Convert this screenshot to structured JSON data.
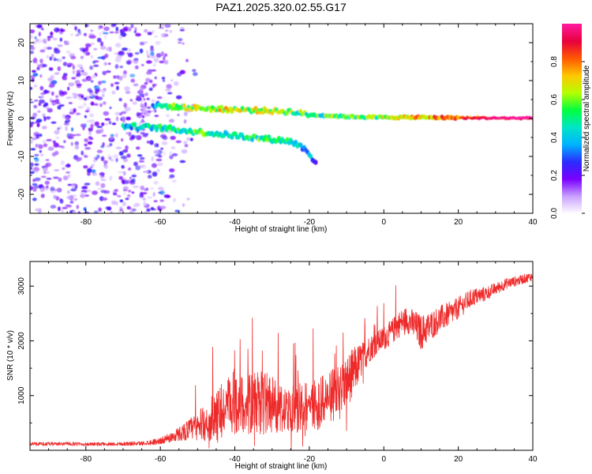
{
  "title": "PAZ1.2025.320.02.55.G17",
  "chart_data": [
    {
      "type": "heatmap",
      "name": "spectrogram",
      "xlabel": "Height of straight line (km)",
      "ylabel": "Frequency (Hz)",
      "xlim": [
        -95,
        40
      ],
      "ylim": [
        -25,
        25
      ],
      "xticks": [
        -80,
        -60,
        -40,
        -20,
        0,
        20,
        40
      ],
      "yticks": [
        -20,
        -10,
        0,
        10,
        20
      ],
      "colorbar": {
        "label": "Normalized spectral amplitude",
        "range": [
          0,
          1
        ],
        "ticks": [
          "0.0",
          "0.2",
          "0.4",
          "0.6",
          "0.8"
        ],
        "tick_values": [
          0,
          0.2,
          0.4,
          0.6,
          0.8
        ],
        "colormap": [
          "#ffffff",
          "#c9a3ff",
          "#7a00ff",
          "#2b2bff",
          "#00b2ff",
          "#00e5c8",
          "#00ff40",
          "#b4ff00",
          "#ffc800",
          "#ff5a00",
          "#e8003c",
          "#ff1a9e"
        ]
      },
      "features": [
        {
          "name": "upper branch",
          "x": [
            -62,
            -55,
            -45,
            -35,
            -25,
            -20,
            -10,
            0,
            10,
            20,
            30,
            40
          ],
          "y": [
            3.5,
            3,
            2.5,
            2.2,
            1.8,
            1,
            0.5,
            0.3,
            0.3,
            0.2,
            0.1,
            0.1
          ],
          "amplitude": [
            0.3,
            0.55,
            0.65,
            0.6,
            0.55,
            0.5,
            0.55,
            0.6,
            0.7,
            0.8,
            0.92,
            0.98
          ]
        },
        {
          "name": "lower branch",
          "x": [
            -70,
            -60,
            -50,
            -40,
            -30,
            -25,
            -21,
            -18
          ],
          "y": [
            -2,
            -2.5,
            -3.5,
            -4.5,
            -5.5,
            -6,
            -8,
            -12
          ],
          "amplitude": [
            0.35,
            0.45,
            0.5,
            0.45,
            0.5,
            0.45,
            0.35,
            0.25
          ]
        },
        {
          "name": "noise region",
          "x_range": [
            -95,
            -58
          ],
          "y_range": [
            -25,
            25
          ],
          "amplitude": 0.15
        }
      ]
    },
    {
      "type": "line",
      "name": "snr",
      "xlabel": "Height of straight line (km)",
      "ylabel": "SNR (10 * v/v)",
      "xlim": [
        -95,
        40
      ],
      "ylim": [
        0,
        3450
      ],
      "xticks": [
        -80,
        -60,
        -40,
        -20,
        0,
        20,
        40
      ],
      "yticks": [
        1000,
        2000,
        3000
      ],
      "color": "#ee2a2a",
      "series": [
        {
          "name": "SNR",
          "x": [
            -95,
            -90,
            -85,
            -80,
            -75,
            -70,
            -65,
            -60,
            -57,
            -54,
            -51,
            -48,
            -45,
            -42,
            -40,
            -38,
            -35,
            -32,
            -30,
            -27,
            -24,
            -21,
            -18,
            -15,
            -12,
            -10,
            -8,
            -6,
            -4,
            -2,
            0,
            2,
            4,
            6,
            8,
            10,
            12,
            15,
            18,
            21,
            24,
            27,
            30,
            33,
            36,
            40
          ],
          "mean": [
            120,
            115,
            120,
            110,
            115,
            120,
            125,
            170,
            240,
            330,
            420,
            500,
            640,
            780,
            900,
            850,
            820,
            880,
            860,
            700,
            750,
            800,
            850,
            950,
            1100,
            1250,
            1450,
            1650,
            1850,
            1950,
            2050,
            2150,
            2300,
            2400,
            2300,
            2150,
            2250,
            2400,
            2500,
            2650,
            2800,
            2850,
            2950,
            3050,
            3100,
            3180
          ],
          "spread": [
            60,
            60,
            60,
            60,
            60,
            70,
            70,
            110,
            170,
            280,
            420,
            600,
            850,
            1000,
            1100,
            950,
            1050,
            1100,
            950,
            800,
            850,
            800,
            900,
            850,
            850,
            900,
            800,
            600,
            450,
            400,
            400,
            420,
            450,
            420,
            500,
            600,
            500,
            450,
            400,
            350,
            300,
            250,
            200,
            180,
            160,
            150
          ]
        }
      ]
    }
  ]
}
